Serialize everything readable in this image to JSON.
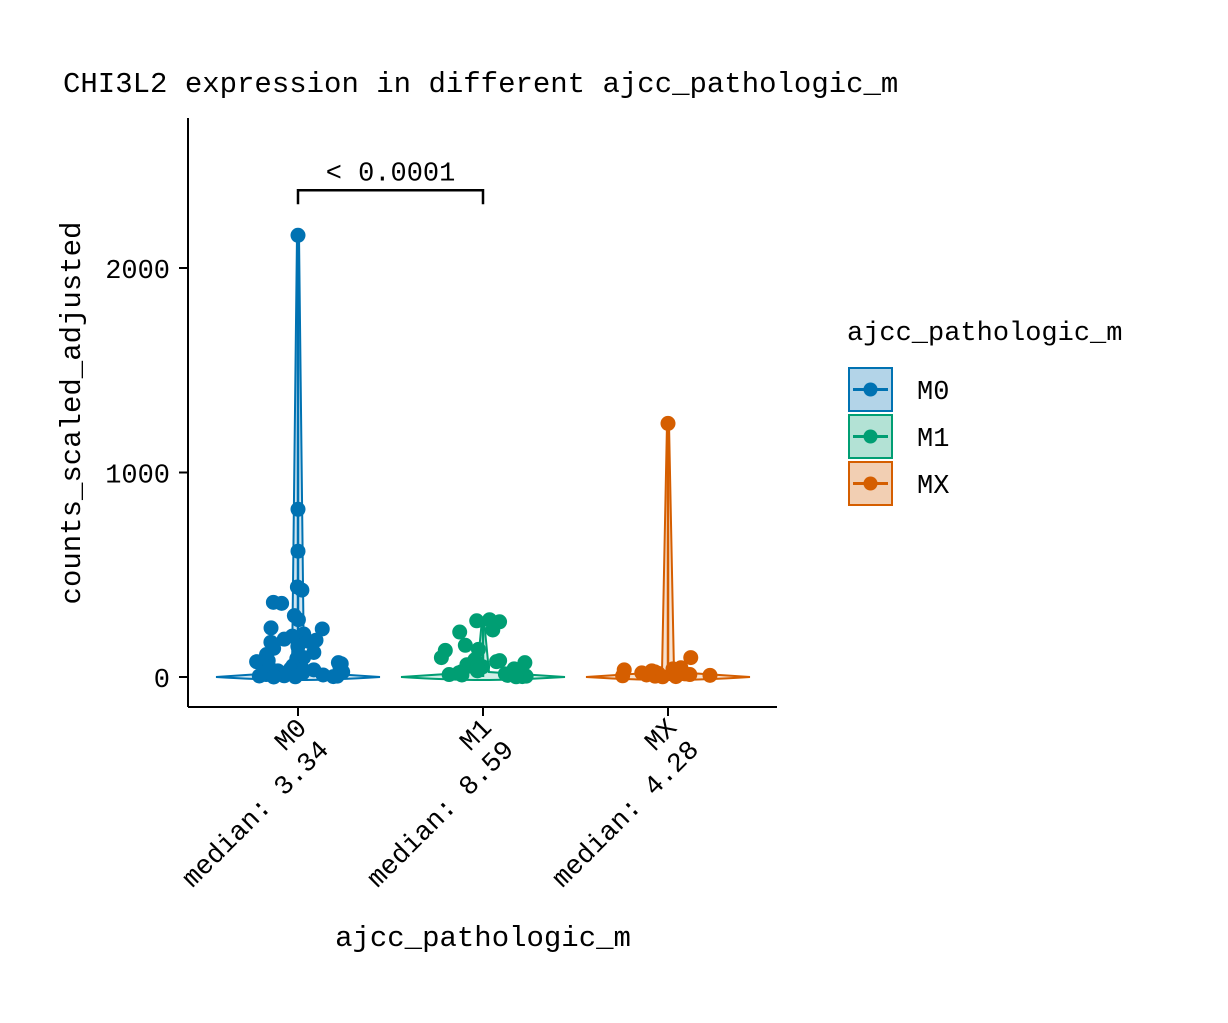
{
  "chart_data": {
    "type": "violin",
    "title": "CHI3L2 expression in different ajcc_pathologic_m",
    "xlabel": "ajcc_pathologic_m",
    "ylabel": "counts_scaled_adjusted",
    "ylim": [
      -150,
      2680
    ],
    "yticks": [
      0,
      1000,
      2000
    ],
    "grid": false,
    "legend": {
      "title": "ajcc_pathologic_m",
      "position": "right",
      "entries": [
        "M0",
        "M1",
        "MX"
      ]
    },
    "categories": [
      {
        "name": "M0",
        "median_label": "median: 3.34",
        "median": 3.34,
        "color": "#0072B2",
        "fill": "#B3D4E8"
      },
      {
        "name": "M1",
        "median_label": "median: 8.59",
        "median": 8.59,
        "color": "#009E73",
        "fill": "#B3E2D5"
      },
      {
        "name": "MX",
        "median_label": "median: 4.28",
        "median": 4.28,
        "color": "#D55E00",
        "fill": "#F2CFB3"
      }
    ],
    "series": [
      {
        "name": "M0",
        "max": 2160,
        "points": [
          2160,
          820,
          615,
          440,
          425,
          365,
          360,
          300,
          280,
          240,
          235,
          210,
          200,
          185,
          180,
          175,
          170,
          150,
          140,
          120,
          110,
          95,
          90,
          80,
          75,
          70,
          65,
          60,
          55,
          50,
          45,
          40,
          38,
          35,
          30,
          28,
          25,
          22,
          20,
          18,
          15,
          12,
          10,
          8,
          6,
          5,
          4,
          3,
          2,
          1,
          0
        ]
      },
      {
        "name": "M1",
        "max": 280,
        "points": [
          280,
          275,
          270,
          230,
          220,
          155,
          135,
          130,
          95,
          85,
          80,
          75,
          70,
          60,
          55,
          50,
          45,
          40,
          35,
          30,
          25,
          20,
          15,
          12,
          10,
          8,
          6,
          4,
          2,
          1
        ]
      },
      {
        "name": "MX",
        "max": 1240,
        "points": [
          1240,
          95,
          45,
          40,
          35,
          30,
          25,
          20,
          18,
          15,
          12,
          10,
          8,
          6,
          4,
          2,
          1
        ]
      }
    ],
    "annotations": [
      {
        "text": "< 0.0001",
        "from": "M0",
        "to": "M1",
        "y": 2380
      }
    ]
  }
}
